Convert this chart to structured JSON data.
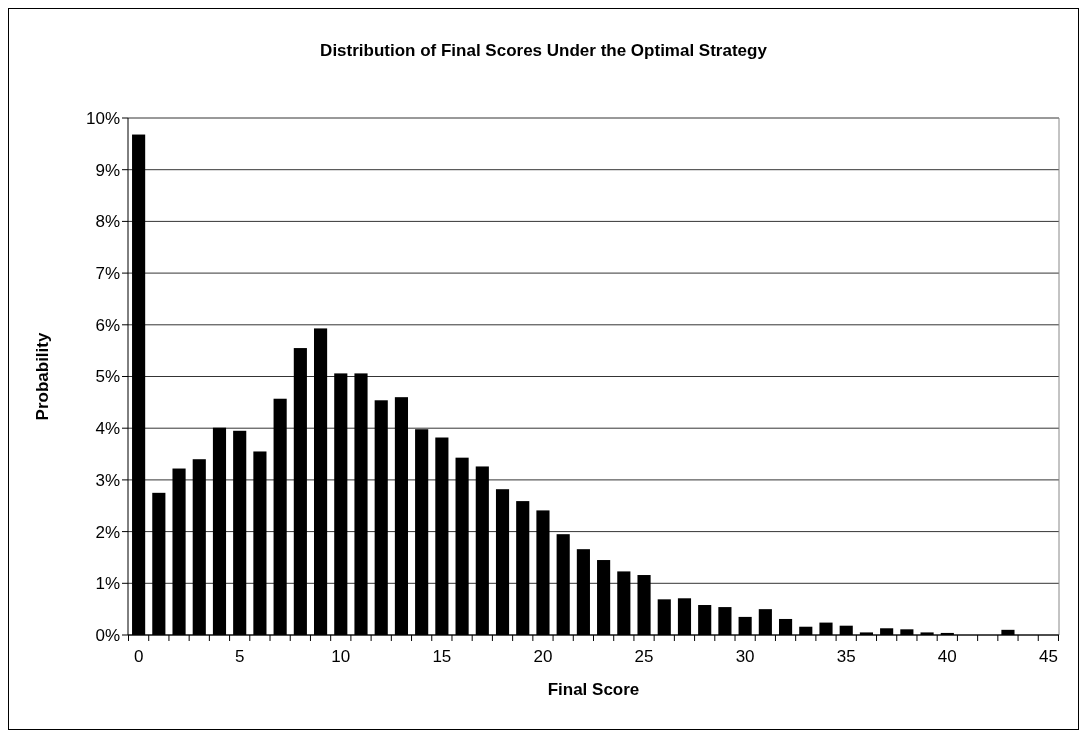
{
  "chart_data": {
    "type": "bar",
    "title": "Distribution of Final Scores Under the Optimal Strategy",
    "xlabel": "Final Score",
    "ylabel": "Probability",
    "categories": [
      "0",
      null,
      null,
      null,
      null,
      "5",
      null,
      null,
      null,
      null,
      "10",
      null,
      null,
      null,
      null,
      "15",
      null,
      null,
      null,
      null,
      "20",
      null,
      null,
      null,
      null,
      "25",
      null,
      null,
      null,
      null,
      "30",
      null,
      null,
      null,
      null,
      "35",
      null,
      null,
      null,
      null,
      "40",
      null,
      null,
      null,
      null,
      "45"
    ],
    "values": [
      9.68,
      2.75,
      3.22,
      3.4,
      4.01,
      3.95,
      3.55,
      4.57,
      5.55,
      5.93,
      5.06,
      5.06,
      4.54,
      4.6,
      3.98,
      3.82,
      3.43,
      3.26,
      2.82,
      2.59,
      2.41,
      1.95,
      1.66,
      1.45,
      1.23,
      1.16,
      0.69,
      0.71,
      0.58,
      0.54,
      0.35,
      0.5,
      0.31,
      0.16,
      0.24,
      0.18,
      0.05,
      0.13,
      0.11,
      0.05,
      0.04,
      0,
      0,
      0.1,
      0,
      0
    ],
    "color": "#000000",
    "ylim": [
      0,
      10
    ],
    "yticks": [
      {
        "value": 0,
        "label": "0%"
      },
      {
        "value": 1,
        "label": "1%"
      },
      {
        "value": 2,
        "label": "2%"
      },
      {
        "value": 3,
        "label": "3%"
      },
      {
        "value": 4,
        "label": "4%"
      },
      {
        "value": 5,
        "label": "5%"
      },
      {
        "value": 6,
        "label": "6%"
      },
      {
        "value": 7,
        "label": "7%"
      },
      {
        "value": 8,
        "label": "8%"
      },
      {
        "value": 9,
        "label": "9%"
      },
      {
        "value": 10,
        "label": "10%"
      }
    ],
    "grid": "y"
  }
}
